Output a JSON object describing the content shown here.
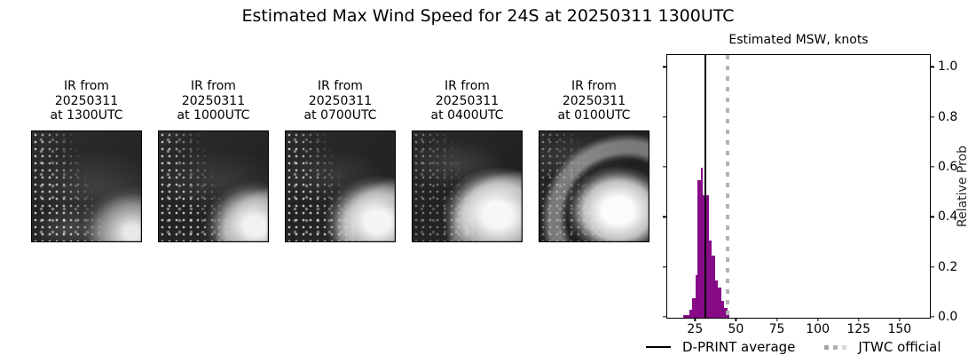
{
  "figure": {
    "title": "Estimated Max Wind Speed for 24S at 20250311 1300UTC",
    "background": "#ffffff"
  },
  "ir_panels": [
    {
      "caption": "IR from\n20250311\nat 1300UTC"
    },
    {
      "caption": "IR from\n20250311\nat 1000UTC"
    },
    {
      "caption": "IR from\n20250311\nat 0700UTC"
    },
    {
      "caption": "IR from\n20250311\nat 0400UTC"
    },
    {
      "caption": "IR from\n20250311\nat 0100UTC"
    }
  ],
  "chart_data": {
    "type": "bar",
    "title": "Estimated MSW, knots",
    "xlabel": "",
    "ylabel": "Relative Prob",
    "xlim": [
      8,
      168
    ],
    "ylim": [
      0,
      1.047
    ],
    "x_ticks": [
      25,
      50,
      75,
      100,
      125,
      150
    ],
    "y_ticks": [
      0.0,
      0.2,
      0.4,
      0.6,
      0.8,
      1.0
    ],
    "grid": false,
    "bar_color": "#870b87",
    "bins": [
      {
        "from": 18.0,
        "to": 21.6,
        "value": 0.012
      },
      {
        "from": 21.6,
        "to": 23.4,
        "value": 0.032
      },
      {
        "from": 23.4,
        "to": 25.3,
        "value": 0.078
      },
      {
        "from": 25.3,
        "to": 26.7,
        "value": 0.17
      },
      {
        "from": 26.7,
        "to": 28.6,
        "value": 0.55
      },
      {
        "from": 28.6,
        "to": 29.8,
        "value": 0.6
      },
      {
        "from": 29.8,
        "to": 33.4,
        "value": 0.49
      },
      {
        "from": 33.4,
        "to": 35.3,
        "value": 0.31
      },
      {
        "from": 35.3,
        "to": 37.2,
        "value": 0.25
      },
      {
        "from": 37.2,
        "to": 39.1,
        "value": 0.15
      },
      {
        "from": 39.1,
        "to": 41.0,
        "value": 0.12
      },
      {
        "from": 41.0,
        "to": 42.9,
        "value": 0.067
      },
      {
        "from": 42.9,
        "to": 44.8,
        "value": 0.038
      },
      {
        "from": 44.8,
        "to": 46.2,
        "value": 0.02
      }
    ],
    "vlines": [
      {
        "name": "D-PRINT average",
        "x": 31.5,
        "style": "solid",
        "color": "#000000"
      },
      {
        "name": "JTWC official",
        "x": 45,
        "style": "dotted",
        "color": "#b3b3b3"
      }
    ],
    "legend": [
      {
        "label": "D-PRINT average",
        "style": "solid-line",
        "color": "#000000"
      },
      {
        "label": "JTWC official",
        "style": "dotted-line",
        "color": "#b3b3b3"
      }
    ],
    "legend_position": "bottom"
  }
}
